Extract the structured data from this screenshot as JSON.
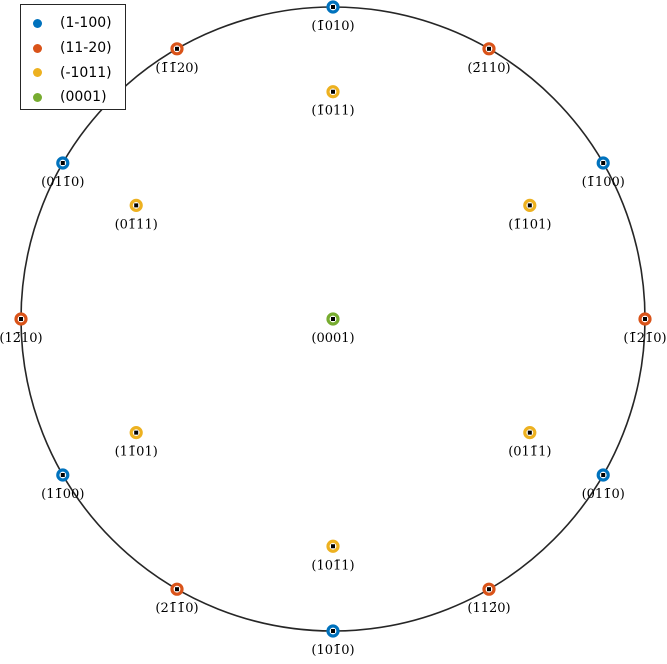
{
  "chart_data": {
    "type": "scatter",
    "title": "",
    "projection": "pole-figure",
    "marker_style": "ring-with-center-square",
    "legend_position": "top-left",
    "series": [
      {
        "name": "(1-100)",
        "color": "#0072BD",
        "points": [
          {
            "azimuth": 90,
            "polar": 90,
            "label": "(1̄010)"
          },
          {
            "azimuth": 30,
            "polar": 90,
            "label": "(1̄100)"
          },
          {
            "azimuth": 150,
            "polar": 90,
            "label": "(011̄0)"
          },
          {
            "azimuth": 210,
            "polar": 90,
            "label": "(11̄00)"
          },
          {
            "azimuth": 270,
            "polar": 90,
            "label": "(101̄0)"
          },
          {
            "azimuth": 330,
            "polar": 90,
            "label": "(011̄0)"
          }
        ]
      },
      {
        "name": "(11-20)",
        "color": "#D95319",
        "points": [
          {
            "azimuth": 60,
            "polar": 90,
            "label": "(2̄110)"
          },
          {
            "azimuth": 120,
            "polar": 90,
            "label": "(1̄1̄20)"
          },
          {
            "azimuth": 0,
            "polar": 90,
            "label": "(1̄21̄0)"
          },
          {
            "azimuth": 180,
            "polar": 90,
            "label": "(12̄10)"
          },
          {
            "azimuth": 240,
            "polar": 90,
            "label": "(21̄1̄0)"
          },
          {
            "azimuth": 300,
            "polar": 90,
            "label": "(112̄0)"
          }
        ]
      },
      {
        "name": "(-1011)",
        "color": "#EDB120",
        "points": [
          {
            "azimuth": 90,
            "polar": 62,
            "label": "(1̄011)"
          },
          {
            "azimuth": 30,
            "polar": 62,
            "label": "(1̄101)"
          },
          {
            "azimuth": 150,
            "polar": 62,
            "label": "(01̄11)"
          },
          {
            "azimuth": 210,
            "polar": 62,
            "label": "(11̄01)"
          },
          {
            "azimuth": 270,
            "polar": 62,
            "label": "(101̄1)"
          },
          {
            "azimuth": 330,
            "polar": 62,
            "label": "(011̄1)"
          }
        ]
      },
      {
        "name": "(0001)",
        "color": "#77AC30",
        "points": [
          {
            "azimuth": 0,
            "polar": 0,
            "label": "(0001)"
          }
        ]
      }
    ]
  }
}
